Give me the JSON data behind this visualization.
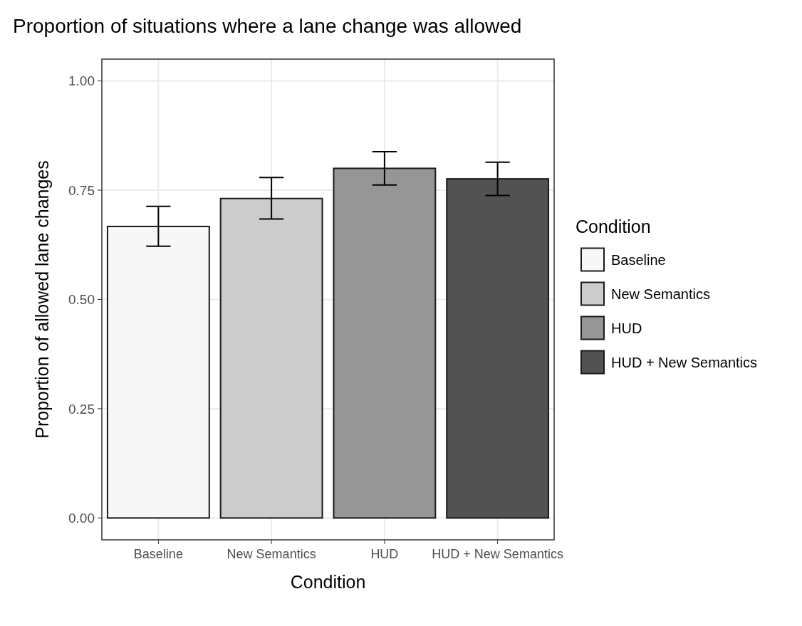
{
  "chart_data": {
    "type": "bar",
    "title": "Proportion of situations where a lane change was allowed",
    "xlabel": "Condition",
    "ylabel": "Proportion of allowed lane changes",
    "legend_title": "Condition",
    "categories": [
      "Baseline",
      "New Semantics",
      "HUD",
      "HUD + New Semantics"
    ],
    "series": [
      {
        "name": "Baseline",
        "color": "#f7f7f7",
        "values": [
          0.667,
          null,
          null,
          null
        ],
        "errors": [
          [
            0.622,
            0.713
          ],
          null,
          null,
          null
        ]
      },
      {
        "name": "New Semantics",
        "color": "#cccccc",
        "values": [
          null,
          0.731,
          null,
          null
        ],
        "errors": [
          null,
          [
            0.684,
            0.779
          ],
          null,
          null
        ]
      },
      {
        "name": "HUD",
        "color": "#969696",
        "values": [
          null,
          null,
          0.8,
          null
        ],
        "errors": [
          null,
          null,
          [
            0.762,
            0.838
          ],
          null
        ]
      },
      {
        "name": "HUD + New Semantics",
        "color": "#525252",
        "values": [
          null,
          null,
          null,
          0.776
        ],
        "errors": [
          null,
          null,
          null,
          [
            0.738,
            0.814
          ]
        ]
      }
    ],
    "ylim": [
      -0.05,
      1.05
    ],
    "yticks": [
      {
        "value": 0,
        "label": "0.00"
      },
      {
        "value": 0.25,
        "label": "0.25"
      },
      {
        "value": 0.5,
        "label": "0.50"
      },
      {
        "value": 0.75,
        "label": "0.75"
      },
      {
        "value": 1,
        "label": "1.00"
      }
    ],
    "grid": true,
    "legend": "right"
  }
}
